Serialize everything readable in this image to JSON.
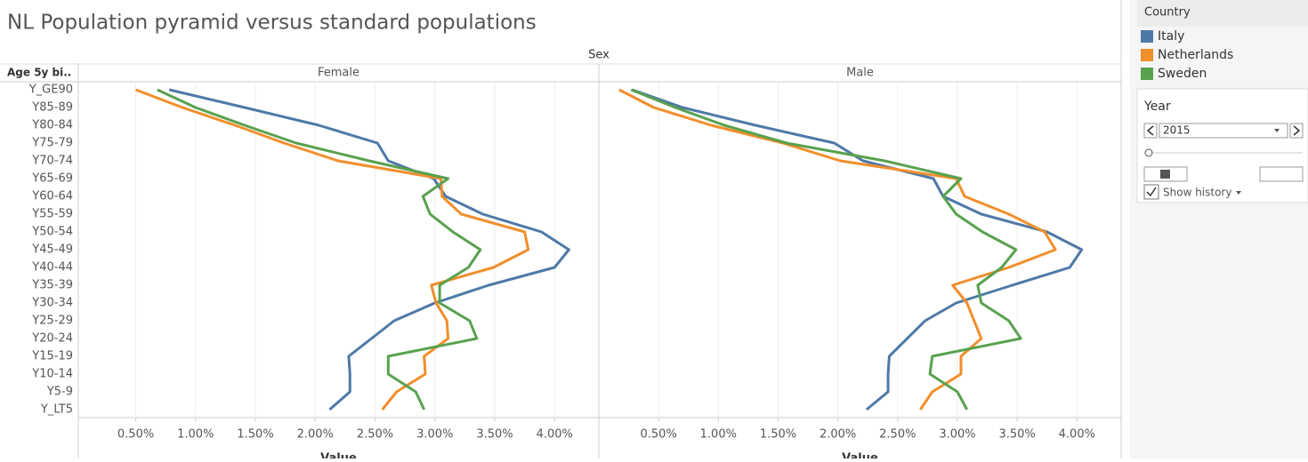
{
  "header": {
    "title": "NL Population pyramid versus standard populations",
    "column_header": "Sex",
    "row_header": "Age 5y bi.."
  },
  "chart_data": [
    {
      "type": "line",
      "panel": "Female",
      "x_label": "Value",
      "categories": [
        "Y_GE90",
        "Y85-89",
        "Y80-84",
        "Y75-79",
        "Y70-74",
        "Y65-69",
        "Y60-64",
        "Y55-59",
        "Y50-54",
        "Y45-49",
        "Y40-44",
        "Y35-39",
        "Y30-34",
        "Y25-29",
        "Y20-24",
        "Y15-19",
        "Y10-14",
        "Y5-9",
        "Y_LT5"
      ],
      "xlim": [
        0.02,
        4.37
      ],
      "xticks": [
        {
          "value": 0.5,
          "label": "0.50%"
        },
        {
          "value": 1.0,
          "label": "1.00%"
        },
        {
          "value": 1.5,
          "label": "1.50%"
        },
        {
          "value": 2.0,
          "label": "2.00%"
        },
        {
          "value": 2.5,
          "label": "2.50%"
        },
        {
          "value": 3.0,
          "label": "3.00%"
        },
        {
          "value": 3.5,
          "label": "3.50%"
        },
        {
          "value": 4.0,
          "label": "4.00%"
        }
      ],
      "grid": true,
      "series": [
        {
          "name": "Italy",
          "color": "#4e79a7",
          "values": [
            0.78,
            1.41,
            2.03,
            2.52,
            2.61,
            2.99,
            3.09,
            3.4,
            3.89,
            4.12,
            4.0,
            3.45,
            3.0,
            2.66,
            2.47,
            2.28,
            2.29,
            2.29,
            2.12
          ]
        },
        {
          "name": "Netherlands",
          "color": "#f28e2b",
          "values": [
            0.5,
            0.89,
            1.33,
            1.74,
            2.19,
            3.05,
            3.06,
            3.22,
            3.75,
            3.78,
            3.49,
            2.97,
            3.01,
            3.1,
            3.11,
            2.91,
            2.92,
            2.68,
            2.56
          ]
        },
        {
          "name": "Sweden",
          "color": "#59a14f",
          "values": [
            0.68,
            1.0,
            1.41,
            1.84,
            2.45,
            3.11,
            2.9,
            2.96,
            3.15,
            3.38,
            3.28,
            3.04,
            3.04,
            3.29,
            3.35,
            2.61,
            2.61,
            2.84,
            2.91
          ]
        }
      ]
    },
    {
      "type": "line",
      "panel": "Male",
      "x_label": "Value",
      "xlim": [
        0.0,
        4.37
      ],
      "xticks": [
        {
          "value": 0.5,
          "label": "0.50%"
        },
        {
          "value": 1.0,
          "label": "1.00%"
        },
        {
          "value": 1.5,
          "label": "1.50%"
        },
        {
          "value": 2.0,
          "label": "2.00%"
        },
        {
          "value": 2.5,
          "label": "2.50%"
        },
        {
          "value": 3.0,
          "label": "3.00%"
        },
        {
          "value": 3.5,
          "label": "3.50%"
        },
        {
          "value": 4.0,
          "label": "4.00%"
        }
      ],
      "grid": true,
      "series": [
        {
          "name": "Italy",
          "color": "#4e79a7",
          "values": [
            0.28,
            0.7,
            1.31,
            1.97,
            2.21,
            2.8,
            2.88,
            3.2,
            3.75,
            4.04,
            3.94,
            3.46,
            2.99,
            2.73,
            2.58,
            2.43,
            2.42,
            2.42,
            2.24
          ]
        },
        {
          "name": "Netherlands",
          "color": "#f28e2b",
          "values": [
            0.17,
            0.46,
            0.94,
            1.54,
            2.02,
            2.99,
            3.06,
            3.43,
            3.73,
            3.82,
            3.43,
            2.96,
            3.08,
            3.14,
            3.2,
            3.03,
            3.03,
            2.79,
            2.69
          ]
        },
        {
          "name": "Sweden",
          "color": "#59a14f",
          "values": [
            0.27,
            0.64,
            1.05,
            1.57,
            2.39,
            3.03,
            2.88,
            2.99,
            3.21,
            3.49,
            3.37,
            3.17,
            3.2,
            3.43,
            3.53,
            2.79,
            2.77,
            3.0,
            3.08
          ]
        }
      ]
    }
  ],
  "legend": {
    "title": "Country"
  },
  "controls": {
    "label": "Year",
    "value": "2015",
    "show_history": "Show history"
  }
}
